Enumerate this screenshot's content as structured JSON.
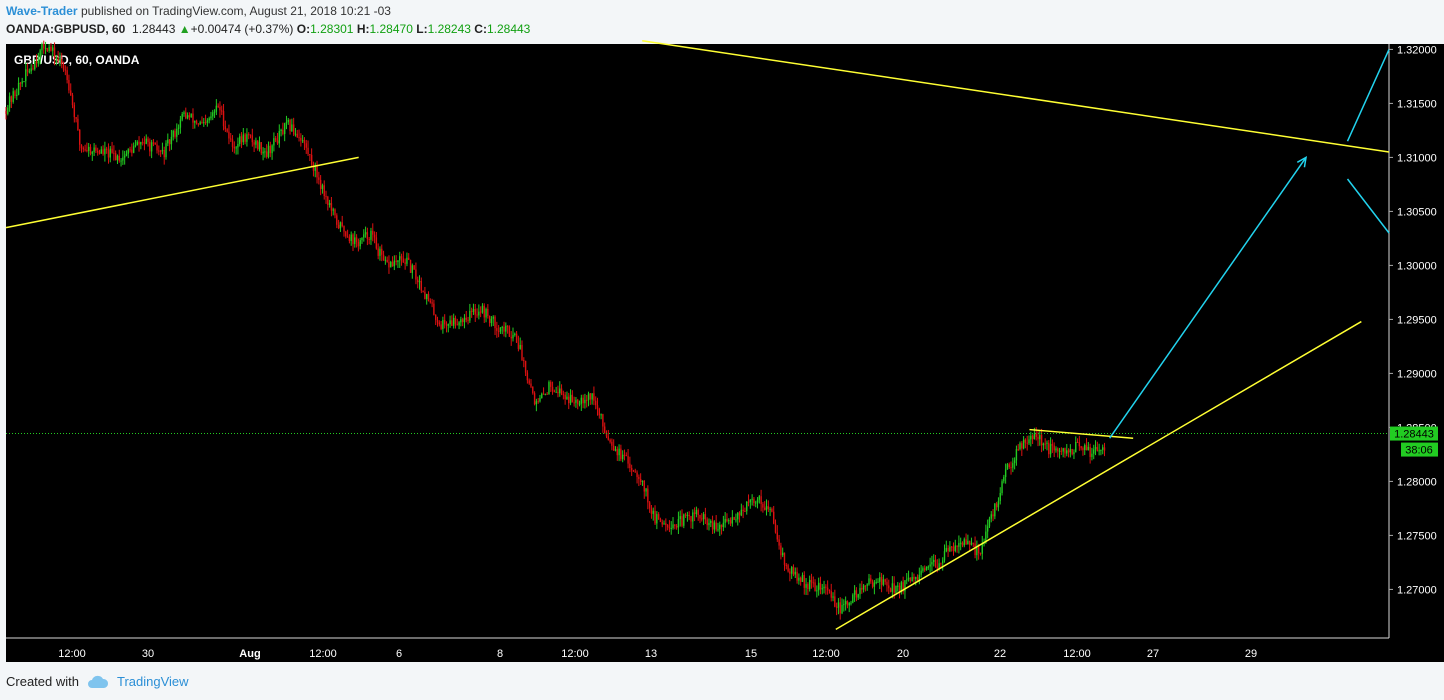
{
  "header": {
    "author": "Wave-Trader",
    "published_text": "published on TradingView.com, August 21, 2018 10:21 -03",
    "symbol": "OANDA:GBPUSD, 60",
    "last": "1.28443",
    "change": "+0.00474 (+0.37%)",
    "o_label": "O:",
    "o_value": "1.28301",
    "h_label": "H:",
    "h_value": "1.28470",
    "l_label": "L:",
    "l_value": "1.28243",
    "c_label": "C:",
    "c_value": "1.28443"
  },
  "footer": {
    "created_with": "Created with",
    "brand": "TradingView"
  },
  "colors": {
    "background": "#000000",
    "up": "#22cc22",
    "down": "#dd1111",
    "trendline": "#ffff33",
    "projection": "#22d3ee",
    "price_tag": "#22cc22"
  },
  "chart_data": {
    "type": "candlestick",
    "title": "GBP/USD, 60, OANDA",
    "y_ticks": [
      "1.32000",
      "1.31500",
      "1.31000",
      "1.30500",
      "1.30000",
      "1.29500",
      "1.29000",
      "1.28500",
      "1.28000",
      "1.27500",
      "1.27000"
    ],
    "y_range": [
      1.2655,
      1.3205
    ],
    "x_ticks": [
      "12:00",
      "30",
      "Aug",
      "12:00",
      "6",
      "8",
      "12:00",
      "13",
      "15",
      "12:00",
      "20",
      "22",
      "12:00",
      "27",
      "29"
    ],
    "last_price_label": "1.28443",
    "countdown_label": "38:06",
    "last_price": 1.28443,
    "price_path": [
      [
        0,
        1.3143
      ],
      [
        0.015,
        1.3175
      ],
      [
        0.03,
        1.3205
      ],
      [
        0.045,
        1.318
      ],
      [
        0.055,
        1.311
      ],
      [
        0.07,
        1.3105
      ],
      [
        0.085,
        1.31
      ],
      [
        0.1,
        1.3115
      ],
      [
        0.115,
        1.3103
      ],
      [
        0.13,
        1.314
      ],
      [
        0.145,
        1.3128
      ],
      [
        0.155,
        1.3148
      ],
      [
        0.165,
        1.311
      ],
      [
        0.175,
        1.312
      ],
      [
        0.19,
        1.3105
      ],
      [
        0.205,
        1.313
      ],
      [
        0.215,
        1.3118
      ],
      [
        0.225,
        1.3088
      ],
      [
        0.24,
        1.304
      ],
      [
        0.255,
        1.302
      ],
      [
        0.265,
        1.303
      ],
      [
        0.275,
        1.3
      ],
      [
        0.29,
        1.3005
      ],
      [
        0.3,
        1.2985
      ],
      [
        0.315,
        1.2945
      ],
      [
        0.33,
        1.295
      ],
      [
        0.345,
        1.296
      ],
      [
        0.355,
        1.2945
      ],
      [
        0.37,
        1.2935
      ],
      [
        0.385,
        1.287
      ],
      [
        0.395,
        1.289
      ],
      [
        0.41,
        1.2875
      ],
      [
        0.425,
        1.288
      ],
      [
        0.435,
        1.2845
      ],
      [
        0.445,
        1.2825
      ],
      [
        0.46,
        1.2805
      ],
      [
        0.47,
        1.2765
      ],
      [
        0.485,
        1.276
      ],
      [
        0.5,
        1.277
      ],
      [
        0.515,
        1.2755
      ],
      [
        0.53,
        1.277
      ],
      [
        0.545,
        1.2785
      ],
      [
        0.555,
        1.277
      ],
      [
        0.565,
        1.272
      ],
      [
        0.58,
        1.2705
      ],
      [
        0.595,
        1.27
      ],
      [
        0.605,
        1.268
      ],
      [
        0.615,
        1.2695
      ],
      [
        0.63,
        1.271
      ],
      [
        0.645,
        1.27
      ],
      [
        0.66,
        1.271
      ],
      [
        0.675,
        1.2725
      ],
      [
        0.69,
        1.2745
      ],
      [
        0.705,
        1.2735
      ],
      [
        0.715,
        1.277
      ],
      [
        0.725,
        1.281
      ],
      [
        0.735,
        1.2835
      ],
      [
        0.745,
        1.2845
      ],
      [
        0.755,
        1.283
      ],
      [
        0.765,
        1.2825
      ],
      [
        0.775,
        1.2832
      ],
      [
        0.785,
        1.2828
      ],
      [
        0.795,
        1.2833
      ]
    ],
    "trendlines": [
      {
        "from": [
          0.0,
          1.3035
        ],
        "to": [
          0.255,
          1.31
        ]
      },
      {
        "from": [
          0.46,
          1.3208
        ],
        "to": [
          1.0,
          1.3105
        ]
      },
      {
        "from": [
          0.6,
          1.2663
        ],
        "to": [
          0.98,
          1.2948
        ]
      },
      {
        "from": [
          0.74,
          1.2848
        ],
        "to": [
          0.815,
          1.284
        ]
      }
    ],
    "projections": [
      {
        "from": [
          0.798,
          1.284
        ],
        "to": [
          0.94,
          1.31
        ],
        "arrow": true
      },
      {
        "from": [
          0.97,
          1.3115
        ],
        "to": [
          1.0,
          1.32
        ],
        "arrow": false
      },
      {
        "from": [
          0.97,
          1.308
        ],
        "to": [
          1.0,
          1.303
        ],
        "arrow": false
      }
    ]
  }
}
